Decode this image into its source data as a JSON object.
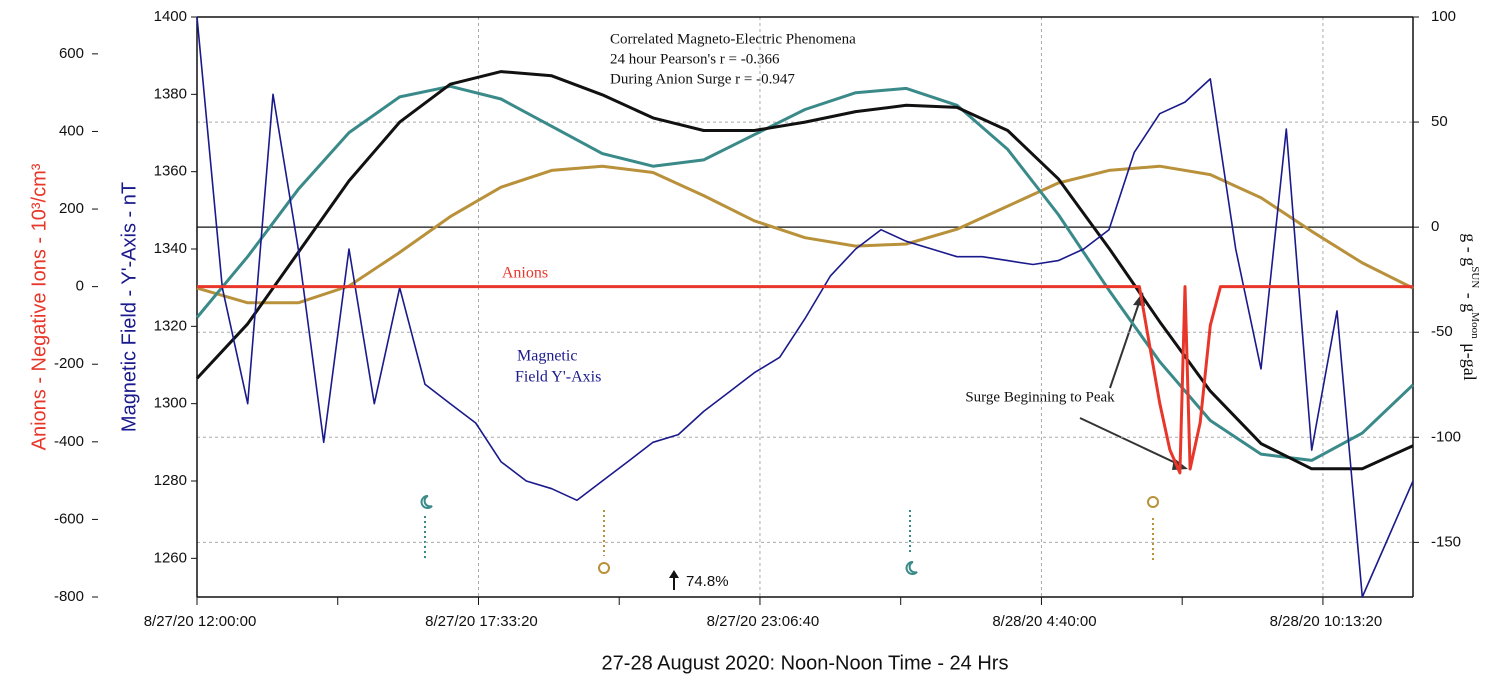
{
  "chart_data": {
    "type": "line",
    "title_lines": [
      "Correlated Magneto-Electric  Phenomena",
      "24 hour  Pearson's   r =  -0.366",
      "During Anion Surge  r =  -0.947"
    ],
    "xlabel": "27-28 August 2020: Noon-Noon     Time - 24 Hrs",
    "ylabel": "Anions - Negative Ions - 10³/cm³",
    "y3label": "Magnetic Field - Y'-Axis - nT",
    "y2label_parts": [
      "g  -  g",
      "SUN",
      "  -  g",
      "Moon",
      "   μ-gal"
    ],
    "xlim": [
      0,
      24
    ],
    "xticks": [
      {
        "value": 0,
        "label": "8/27/20  12:00:00"
      },
      {
        "value": 5.5556,
        "label": "8/27/20  17:33:20"
      },
      {
        "value": 11.1111,
        "label": "8/27/20   23:06:40"
      },
      {
        "value": 16.6667,
        "label": "8/28/20   4:40:00"
      },
      {
        "value": 22.2222,
        "label": "8/28/20    10:13:20"
      }
    ],
    "xminor_ticks": [
      2.7778,
      8.3333,
      13.8889,
      19.4444
    ],
    "ylim": [
      -800,
      695
    ],
    "yticks": [
      -800,
      -600,
      -400,
      -200,
      0,
      200,
      400,
      600
    ],
    "y3lim": [
      1250,
      1400
    ],
    "y3ticks": [
      1260,
      1280,
      1300,
      1320,
      1340,
      1360,
      1380,
      1400
    ],
    "y2lim": [
      -176,
      100
    ],
    "y2ticks": [
      -150,
      -100,
      -50,
      0,
      50,
      100
    ],
    "y2grid": true,
    "xgrid": true,
    "series": [
      {
        "color": "#b8913a",
        "axis": "y2",
        "x": [
          0,
          1,
          2,
          3,
          4,
          5,
          6,
          7,
          8,
          9,
          10,
          11,
          12,
          13,
          14,
          15,
          16,
          17,
          18,
          19,
          20,
          21,
          22,
          23,
          24
        ],
        "values": [
          -29,
          -36,
          -36,
          -28,
          -12,
          5,
          19,
          27,
          29,
          26,
          15,
          3,
          -5,
          -9,
          -8,
          -1,
          10,
          21,
          27,
          29,
          25,
          14,
          -2,
          -17,
          -29
        ]
      },
      {
        "color": "#3a8a8a",
        "axis": "y2",
        "x": [
          0,
          1,
          2,
          3,
          4,
          5,
          6,
          7,
          8,
          9,
          10,
          11,
          12,
          13,
          14,
          15,
          16,
          17,
          18,
          19,
          20,
          21,
          22,
          23,
          24
        ],
        "values": [
          -43,
          -14,
          18,
          45,
          62,
          67,
          61,
          48,
          35,
          29,
          32,
          44,
          56,
          64,
          66,
          58,
          37,
          6,
          -30,
          -64,
          -92,
          -108,
          -111,
          -98,
          -75
        ]
      },
      {
        "color": "#111111",
        "axis": "y2",
        "x": [
          0,
          1,
          2,
          3,
          4,
          5,
          6,
          7,
          8,
          9,
          10,
          11,
          12,
          13,
          14,
          15,
          16,
          17,
          18,
          19,
          20,
          21,
          22,
          23,
          24
        ],
        "values": [
          -72,
          -46,
          -12,
          22,
          50,
          68,
          74,
          72,
          63,
          52,
          46,
          46,
          50,
          55,
          58,
          57,
          46,
          23,
          -10,
          -45,
          -78,
          -103,
          -115,
          -115,
          -104
        ]
      },
      {
        "color": "#1a1a8c",
        "axis": "y3",
        "label_lines": [
          "Magnetic",
          "Field Y'-Axis"
        ],
        "x": [
          0,
          0.5,
          1,
          1.5,
          2,
          2.5,
          3,
          3.5,
          4,
          4.5,
          5,
          5.5,
          6,
          6.5,
          7,
          7.5,
          8,
          8.5,
          9,
          9.5,
          10,
          10.5,
          11,
          11.5,
          12,
          12.5,
          13,
          13.5,
          14,
          14.5,
          15,
          15.5,
          16,
          16.5,
          17,
          17.5,
          18,
          18.5,
          19,
          19.5,
          20,
          20.5,
          21,
          21.5,
          22,
          22.5,
          23,
          23.5,
          24
        ],
        "values": [
          1400,
          1330,
          1300,
          1380,
          1340,
          1290,
          1340,
          1300,
          1330,
          1305,
          1300,
          1295,
          1285,
          1280,
          1278,
          1275,
          1280,
          1285,
          1290,
          1292,
          1298,
          1303,
          1308,
          1312,
          1322,
          1333,
          1340,
          1345,
          1342,
          1340,
          1338,
          1338,
          1337,
          1336,
          1337,
          1340,
          1345,
          1365,
          1375,
          1378,
          1384,
          1340,
          1309,
          1371,
          1288,
          1324,
          1250,
          1265,
          1280
        ]
      },
      {
        "color": "#e8372a",
        "axis": "y",
        "name": "Anions",
        "x": [
          0,
          18.6,
          18.8,
          19.0,
          19.2,
          19.4,
          19.5,
          19.6,
          19.8,
          20.0,
          20.2,
          24
        ],
        "values": [
          0,
          0,
          -150,
          -300,
          -420,
          -480,
          0,
          -470,
          -350,
          -100,
          0,
          0
        ]
      }
    ],
    "annotations": {
      "surge": "Surge Beginning to Peak",
      "percent": "74.8%"
    }
  }
}
